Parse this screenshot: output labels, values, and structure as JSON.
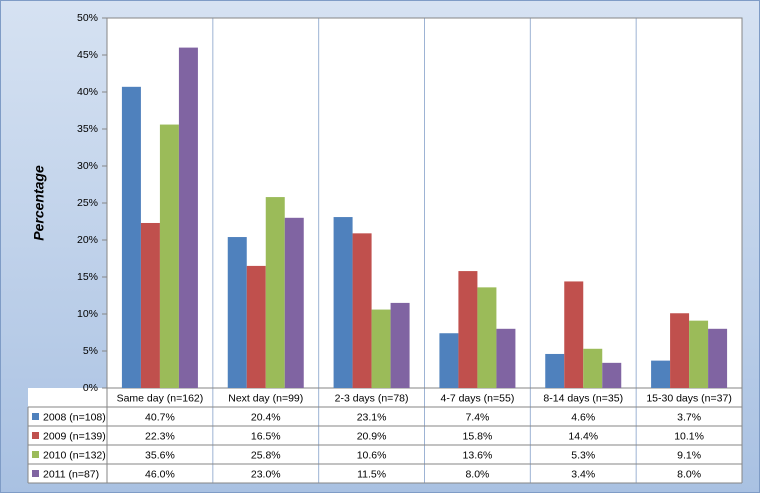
{
  "chart_data": {
    "type": "bar",
    "y_label": "Percentage",
    "categories": [
      "Same day (n=162)",
      "Next day (n=99)",
      "2-3 days (n=78)",
      "4-7 days (n=55)",
      "8-14 days  (n=35)",
      "15-30 days (n=37)"
    ],
    "series": [
      {
        "name": "2008 (n=108)",
        "color": "#4f81bd",
        "values": [
          40.7,
          20.4,
          23.1,
          7.4,
          4.6,
          3.7
        ],
        "value_labels": [
          "40.7%",
          "20.4%",
          "23.1%",
          "7.4%",
          "4.6%",
          "3.7%"
        ]
      },
      {
        "name": "2009 (n=139)",
        "color": "#c0504d",
        "values": [
          22.3,
          16.5,
          20.9,
          15.8,
          14.4,
          10.1
        ],
        "value_labels": [
          "22.3%",
          "16.5%",
          "20.9%",
          "15.8%",
          "14.4%",
          "10.1%"
        ]
      },
      {
        "name": "2010 (n=132)",
        "color": "#9bbb59",
        "values": [
          35.6,
          25.8,
          10.6,
          13.6,
          5.3,
          9.1
        ],
        "value_labels": [
          "35.6%",
          "25.8%",
          "10.6%",
          "13.6%",
          "5.3%",
          "9.1%"
        ]
      },
      {
        "name": "2011 (n=87)",
        "color": "#8064a2",
        "values": [
          46.0,
          23.0,
          11.5,
          8.0,
          3.4,
          8.0
        ],
        "value_labels": [
          "46.0%",
          "23.0%",
          "11.5%",
          "8.0%",
          "3.4%",
          "8.0%"
        ]
      }
    ],
    "ylim": [
      0,
      50
    ],
    "yticks": [
      {
        "value": 0,
        "label": "0%"
      },
      {
        "value": 5,
        "label": "5%"
      },
      {
        "value": 10,
        "label": "10%"
      },
      {
        "value": 15,
        "label": "15%"
      },
      {
        "value": 20,
        "label": "20%"
      },
      {
        "value": 25,
        "label": "25%"
      },
      {
        "value": 30,
        "label": "30%"
      },
      {
        "value": 35,
        "label": "35%"
      },
      {
        "value": 40,
        "label": "40%"
      },
      {
        "value": 45,
        "label": "45%"
      },
      {
        "value": 50,
        "label": "50%"
      }
    ]
  }
}
